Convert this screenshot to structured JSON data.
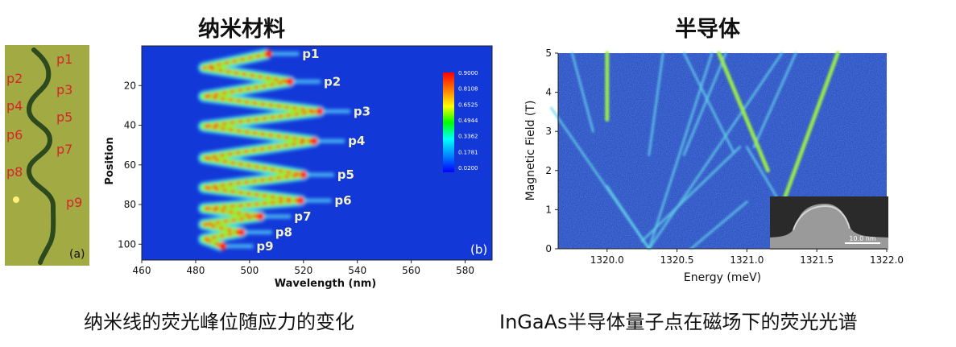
{
  "left": {
    "heading": "纳米材料",
    "caption": "纳米线的荧光峰位随应力的变化",
    "photo": {
      "labels": [
        "p1",
        "p2",
        "p3",
        "p4",
        "p5",
        "p6",
        "p7",
        "p8",
        "p9"
      ],
      "panel_label": "(a)"
    }
  },
  "right": {
    "heading": "半导体",
    "caption": "InGaAs半导体量子点在磁场下的荧光光谱",
    "inset_scale": "10.0 nm"
  },
  "chart_data": [
    {
      "type": "heatmap",
      "panel_label": "(b)",
      "xlabel": "Wavelength (nm)",
      "ylabel": "Position",
      "xlim": [
        460,
        590
      ],
      "ylim": [
        108,
        0
      ],
      "x_ticks": [
        "460",
        "480",
        "500",
        "520",
        "540",
        "560",
        "580"
      ],
      "y_ticks": [
        "20",
        "40",
        "60",
        "80",
        "100"
      ],
      "colorbar": [
        "0.9000",
        "0.8108",
        "0.6525",
        "0.4944",
        "0.3362",
        "0.1781",
        "0.0200"
      ],
      "peaks": [
        {
          "label": "p1",
          "position": 4,
          "wavelength": 507
        },
        {
          "label": "p2",
          "position": 18,
          "wavelength": 515
        },
        {
          "label": "p3",
          "position": 33,
          "wavelength": 526
        },
        {
          "label": "p4",
          "position": 48,
          "wavelength": 524
        },
        {
          "label": "p5",
          "position": 65,
          "wavelength": 520
        },
        {
          "label": "p6",
          "position": 78,
          "wavelength": 519
        },
        {
          "label": "p7",
          "position": 86,
          "wavelength": 504
        },
        {
          "label": "p8",
          "position": 94,
          "wavelength": 497
        },
        {
          "label": "p9",
          "position": 101,
          "wavelength": 490
        }
      ]
    },
    {
      "type": "heatmap",
      "xlabel": "Energy (meV)",
      "ylabel": "Magnetic Field (T)",
      "xlim": [
        1319.65,
        1322.0
      ],
      "ylim": [
        0,
        5
      ],
      "x_ticks": [
        "1320.0",
        "1320.5",
        "1321.0",
        "1321.5",
        "1322.0"
      ],
      "y_ticks": [
        "0",
        "1",
        "2",
        "3",
        "4",
        "5"
      ],
      "lines": [
        {
          "from": [
            1320.3,
            0
          ],
          "to": [
            1319.6,
            3.6
          ],
          "intensity": "medium"
        },
        {
          "from": [
            1320.3,
            0
          ],
          "to": [
            1320.75,
            5
          ],
          "intensity": "medium"
        },
        {
          "from": [
            1320.3,
            0
          ],
          "to": [
            1321.25,
            5
          ],
          "intensity": "medium"
        },
        {
          "from": [
            1320.3,
            0
          ],
          "to": [
            1320.0,
            1.6
          ],
          "intensity": "medium"
        },
        {
          "from": [
            1320.6,
            0
          ],
          "to": [
            1321.0,
            1.2
          ],
          "intensity": "medium"
        },
        {
          "from": [
            1320.25,
            0.2
          ],
          "to": [
            1320.95,
            2.6
          ],
          "intensity": "medium"
        },
        {
          "from": [
            1320.3,
            2.4
          ],
          "to": [
            1320.4,
            5
          ],
          "intensity": "medium"
        },
        {
          "from": [
            1320.55,
            2.4
          ],
          "to": [
            1320.85,
            5
          ],
          "intensity": "medium"
        },
        {
          "from": [
            1320.9,
            2.5
          ],
          "to": [
            1320.55,
            5
          ],
          "intensity": "medium"
        },
        {
          "from": [
            1319.9,
            3.0
          ],
          "to": [
            1319.75,
            5
          ],
          "intensity": "medium"
        },
        {
          "from": [
            1320.0,
            3.3
          ],
          "to": [
            1320.0,
            5
          ],
          "intensity": "high"
        },
        {
          "from": [
            1321.05,
            2.6
          ],
          "to": [
            1321.35,
            5
          ],
          "intensity": "medium"
        },
        {
          "from": [
            1321.15,
            2.0
          ],
          "to": [
            1320.8,
            5
          ],
          "intensity": "high"
        },
        {
          "from": [
            1321.25,
            1.1
          ],
          "to": [
            1321.65,
            5
          ],
          "intensity": "high"
        },
        {
          "from": [
            1321.25,
            1.1
          ],
          "to": [
            1321.0,
            2.6
          ],
          "intensity": "medium"
        }
      ]
    }
  ]
}
